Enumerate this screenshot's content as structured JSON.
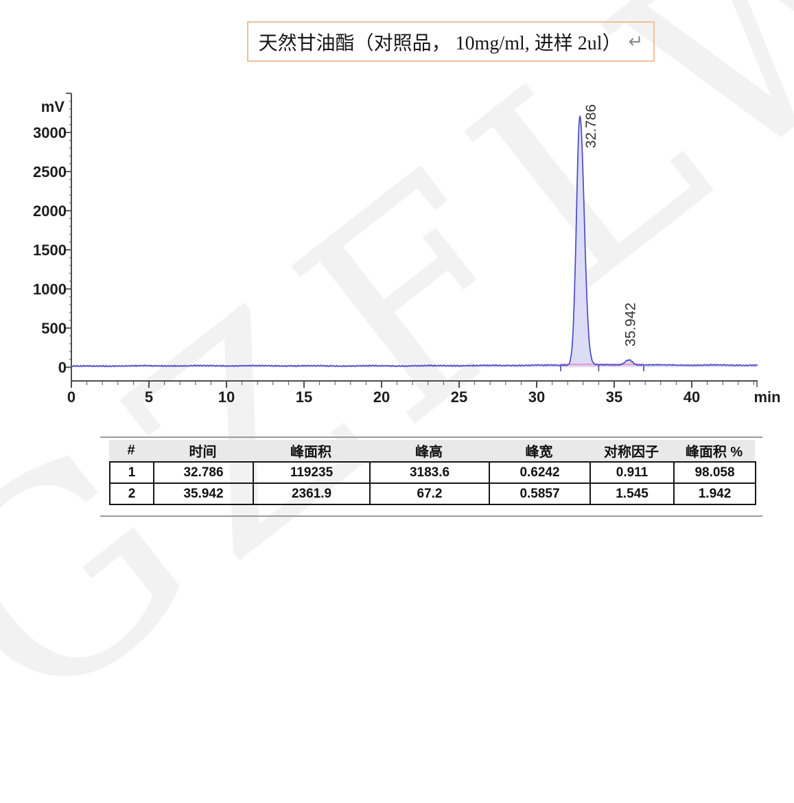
{
  "title": {
    "text": "天然甘油酯（对照品， 10mg/ml, 进样 2ul）",
    "return_mark": "↵"
  },
  "watermark": {
    "text": "GZFLW"
  },
  "chart_data": {
    "type": "line",
    "title": "",
    "xlabel": "min",
    "ylabel": "mV",
    "xlim": [
      0,
      44.3
    ],
    "ylim": [
      0,
      3500
    ],
    "x_ticks": [
      0,
      5,
      10,
      15,
      20,
      25,
      30,
      35,
      40
    ],
    "y_ticks": [
      0,
      500,
      1000,
      1500,
      2000,
      2500,
      3000
    ],
    "grid": "off",
    "baseline_mv": 15,
    "series": [
      {
        "name": "detector-signal",
        "color": "#4a4ac6"
      }
    ],
    "peaks": [
      {
        "id": 1,
        "time": 32.786,
        "area": 119235,
        "height": 3183.6,
        "width": 0.6242,
        "symmetry": 0.911,
        "area_percent": 98.058,
        "label": "32.786"
      },
      {
        "id": 2,
        "time": 35.942,
        "area": 2361.9,
        "height": 67.2,
        "width": 0.5857,
        "symmetry": 1.545,
        "area_percent": 1.942,
        "label": "35.942"
      }
    ],
    "integration": {
      "from": 31.55,
      "to": 36.9,
      "marks": [
        31.55,
        34.0,
        36.9
      ],
      "baseline_mv": 35
    }
  },
  "table": {
    "headers": [
      "#",
      "时间",
      "峰面积",
      "峰高",
      "峰宽",
      "对称因子",
      "峰面积 %"
    ],
    "rows": [
      [
        "1",
        "32.786",
        "119235",
        "3183.6",
        "0.6242",
        "0.911",
        "98.058"
      ],
      [
        "2",
        "35.942",
        "2361.9",
        "67.2",
        "0.5857",
        "1.545",
        "1.942"
      ]
    ]
  },
  "colors": {
    "trace": "#4a4ac6",
    "peak_fill": "#dcdcf6",
    "integration_baseline": "#f09ad2",
    "integration_mark": "#3c3c8c",
    "axis": "#4d4d4d",
    "tick_label": "#1d1d1d",
    "title_border": "#efc197",
    "return_mark": "#8a8a8a",
    "table_header_bg": "#e9e9e9",
    "watermark": "#f2f2f2"
  }
}
